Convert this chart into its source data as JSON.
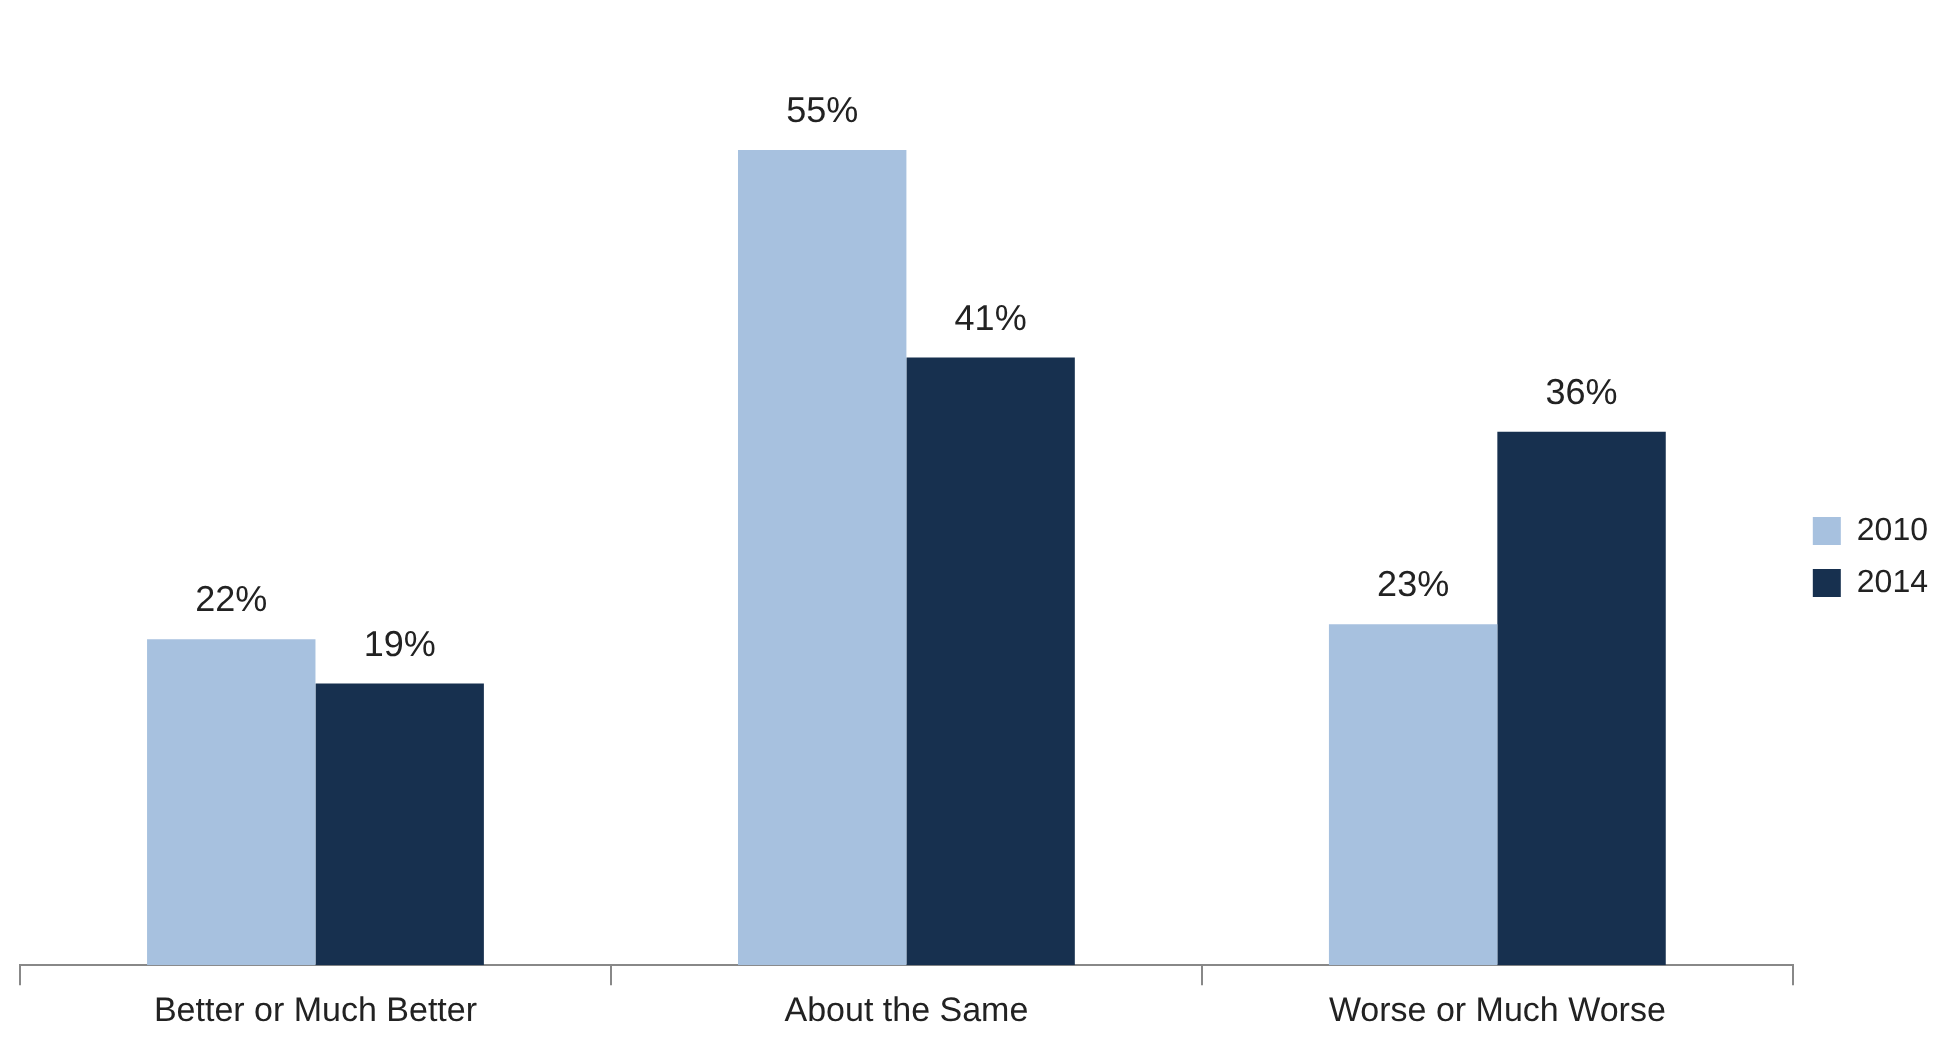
{
  "chart_data": {
    "type": "bar",
    "categories": [
      "Better or Much Better",
      "About the Same",
      "Worse or Much Worse"
    ],
    "series": [
      {
        "name": "2010",
        "color": "#a7c1df",
        "values": [
          22,
          55,
          23
        ],
        "value_labels": [
          "22%",
          "55%",
          "23%"
        ]
      },
      {
        "name": "2014",
        "color": "#17304f",
        "values": [
          19,
          41,
          36
        ],
        "value_labels": [
          "19%",
          "41%",
          "36%"
        ]
      }
    ],
    "legend": "right",
    "grid": false,
    "tick_labels": "x"
  }
}
